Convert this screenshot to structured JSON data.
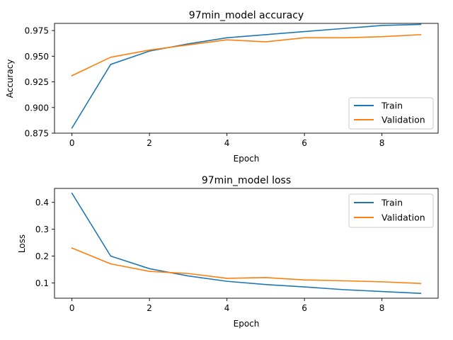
{
  "chart_data": [
    {
      "type": "line",
      "title": "97min_model accuracy",
      "xlabel": "Epoch",
      "ylabel": "Accuracy",
      "x": [
        0,
        1,
        2,
        3,
        4,
        5,
        6,
        7,
        8,
        9
      ],
      "xlim": [
        -0.45,
        9.45
      ],
      "ylim": [
        0.875,
        0.982
      ],
      "xticks": [
        "0",
        "2",
        "4",
        "6",
        "8"
      ],
      "yticks": [
        "0.875",
        "0.900",
        "0.925",
        "0.950",
        "0.975"
      ],
      "legend_position": "lower-right",
      "series": [
        {
          "name": "Train",
          "color": "#1f77b4",
          "values": [
            0.88,
            0.942,
            0.955,
            0.962,
            0.968,
            0.971,
            0.974,
            0.977,
            0.98,
            0.981
          ]
        },
        {
          "name": "Validation",
          "color": "#ff7f0e",
          "values": [
            0.931,
            0.949,
            0.956,
            0.961,
            0.966,
            0.964,
            0.968,
            0.968,
            0.969,
            0.971
          ]
        }
      ]
    },
    {
      "type": "line",
      "title": "97min_model loss",
      "xlabel": "Epoch",
      "ylabel": "Loss",
      "x": [
        0,
        1,
        2,
        3,
        4,
        5,
        6,
        7,
        8,
        9
      ],
      "xlim": [
        -0.45,
        9.45
      ],
      "ylim": [
        0.043,
        0.452
      ],
      "xticks": [
        "0",
        "2",
        "4",
        "6",
        "8"
      ],
      "yticks": [
        "0.1",
        "0.2",
        "0.3",
        "0.4"
      ],
      "legend_position": "upper-right",
      "series": [
        {
          "name": "Train",
          "color": "#1f77b4",
          "values": [
            0.434,
            0.2,
            0.153,
            0.126,
            0.106,
            0.094,
            0.085,
            0.075,
            0.068,
            0.061
          ]
        },
        {
          "name": "Validation",
          "color": "#ff7f0e",
          "values": [
            0.23,
            0.171,
            0.143,
            0.135,
            0.117,
            0.12,
            0.111,
            0.108,
            0.104,
            0.098
          ]
        }
      ]
    }
  ]
}
